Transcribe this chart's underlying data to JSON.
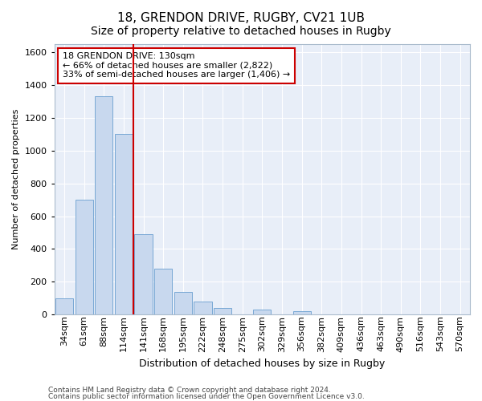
{
  "title1": "18, GRENDON DRIVE, RUGBY, CV21 1UB",
  "title2": "Size of property relative to detached houses in Rugby",
  "xlabel": "Distribution of detached houses by size in Rugby",
  "ylabel": "Number of detached properties",
  "annotation_line1": "18 GRENDON DRIVE: 130sqm",
  "annotation_line2": "← 66% of detached houses are smaller (2,822)",
  "annotation_line3": "33% of semi-detached houses are larger (1,406) →",
  "footnote1": "Contains HM Land Registry data © Crown copyright and database right 2024.",
  "footnote2": "Contains public sector information licensed under the Open Government Licence v3.0.",
  "bar_color": "#c8d8ee",
  "bar_edge_color": "#6a9fd0",
  "background_color": "#e8eef8",
  "grid_color": "#ffffff",
  "fig_bg_color": "#ffffff",
  "vline_color": "#cc0000",
  "vline_position": 3.5,
  "categories": [
    "34sqm",
    "61sqm",
    "88sqm",
    "114sqm",
    "141sqm",
    "168sqm",
    "195sqm",
    "222sqm",
    "248sqm",
    "275sqm",
    "302sqm",
    "329sqm",
    "356sqm",
    "382sqm",
    "409sqm",
    "436sqm",
    "463sqm",
    "490sqm",
    "516sqm",
    "543sqm",
    "570sqm"
  ],
  "values": [
    100,
    700,
    1330,
    1100,
    490,
    280,
    140,
    80,
    40,
    0,
    30,
    0,
    20,
    0,
    0,
    0,
    0,
    0,
    0,
    0,
    0
  ],
  "ylim": [
    0,
    1650
  ],
  "yticks": [
    0,
    200,
    400,
    600,
    800,
    1000,
    1200,
    1400,
    1600
  ],
  "title1_fontsize": 11,
  "title2_fontsize": 10,
  "xlabel_fontsize": 9,
  "ylabel_fontsize": 8,
  "tick_fontsize": 8,
  "annotation_fontsize": 8,
  "footnote_fontsize": 6.5
}
